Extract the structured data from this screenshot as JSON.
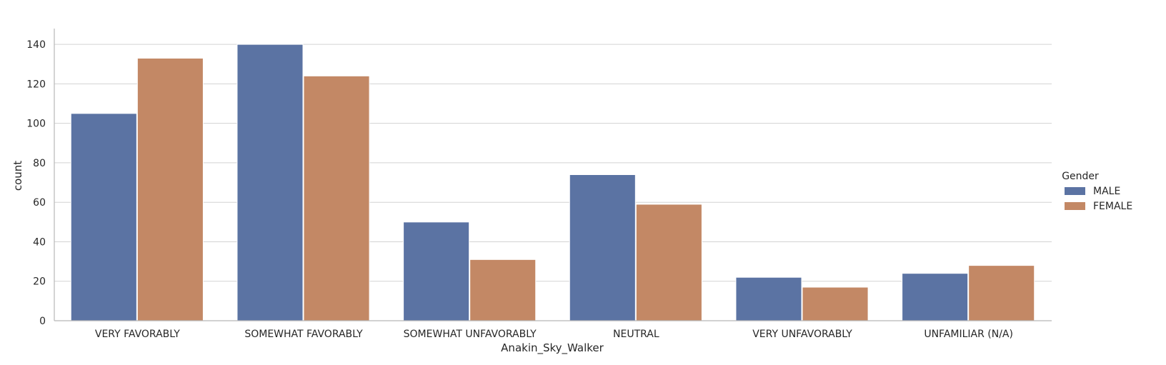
{
  "chart_data": {
    "type": "bar",
    "title": "",
    "xlabel": "Anakin_Sky_Walker",
    "ylabel": "count",
    "categories": [
      "VERY FAVORABLY",
      "SOMEWHAT FAVORABLY",
      "SOMEWHAT UNFAVORABLY",
      "NEUTRAL",
      "VERY UNFAVORABLY",
      "UNFAMILIAR (N/A)"
    ],
    "series": [
      {
        "name": "MALE",
        "color": "#5b73a3",
        "values": [
          105,
          140,
          50,
          74,
          22,
          24
        ]
      },
      {
        "name": "FEMALE",
        "color": "#c38865",
        "values": [
          133,
          124,
          31,
          59,
          17,
          28
        ]
      }
    ],
    "ylim": [
      0,
      148
    ],
    "yticks": [
      0,
      20,
      40,
      60,
      80,
      100,
      120,
      140
    ],
    "grid": "horizontal",
    "legend": {
      "title": "Gender",
      "placement": "right"
    }
  }
}
